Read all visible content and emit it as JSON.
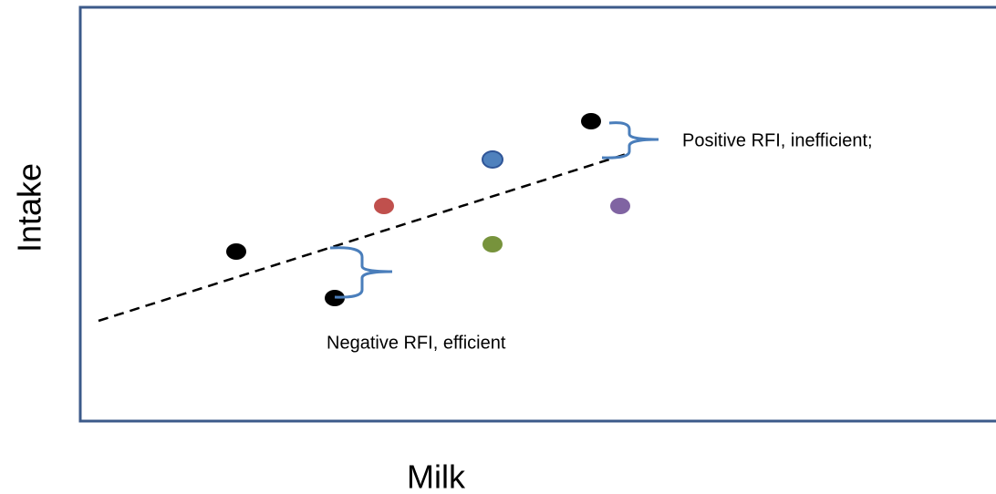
{
  "axes": {
    "y_label": "Intake",
    "x_label": "Milk"
  },
  "annotations": {
    "positive": "Positive RFI, inefficient;",
    "negative": "Negative RFI, efficient"
  }
}
